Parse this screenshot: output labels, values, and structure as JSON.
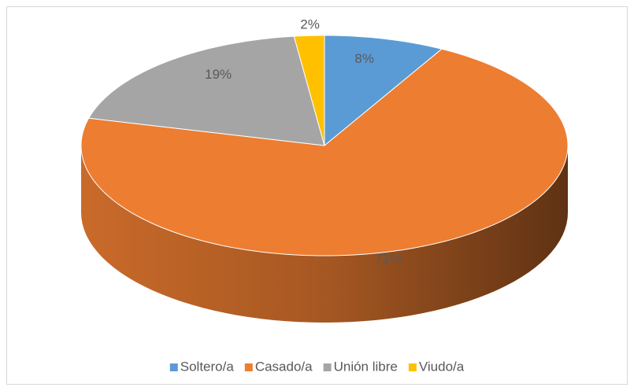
{
  "chart_data": {
    "type": "pie3d",
    "categories": [
      "Soltero/a",
      "Casado/a",
      "Unión libre",
      "Viudo/a"
    ],
    "values": [
      8,
      71,
      19,
      2
    ],
    "value_labels": [
      "8%",
      "71%",
      "19%",
      "2%"
    ],
    "colors": [
      "#5b9bd5",
      "#ed7d31",
      "#a5a5a5",
      "#ffc000"
    ],
    "legend": "bottom"
  }
}
